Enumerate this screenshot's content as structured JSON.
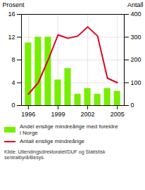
{
  "chart_data": {
    "type": "bar",
    "x": [
      1996,
      1997,
      1998,
      1999,
      2000,
      2001,
      2002,
      2003,
      2004,
      2005
    ],
    "series": [
      {
        "name": "Andel enslige mindreårige med foreldre\ni Norge",
        "type": "bar",
        "color": "#77ee00",
        "values": [
          11.0,
          12.0,
          12.0,
          4.5,
          6.5,
          2.0,
          3.0,
          2.0,
          3.0,
          2.5
        ]
      },
      {
        "name": "Antall enslige mindreårige",
        "type": "line",
        "axis": "y2",
        "color": "#dd0022",
        "values": [
          50,
          100,
          200,
          310,
          295,
          305,
          345,
          305,
          120,
          100
        ]
      }
    ],
    "ylabel": "Prosent",
    "y2label": "Antall",
    "xlim": [
      1995.3,
      2005.7
    ],
    "xticks": [
      1996,
      1999,
      2002,
      2005
    ],
    "ylim": [
      0,
      16
    ],
    "yticks": [
      0,
      4,
      8,
      12,
      16
    ],
    "y2lim": [
      0,
      400
    ],
    "y2ticks": [
      0,
      100,
      200,
      300,
      400
    ],
    "grid": true,
    "legend": "bottom",
    "caption": "Kilde: Utlendingsdirektoratet/DUF og Statistisk\nsentralbyrå/Besys."
  }
}
